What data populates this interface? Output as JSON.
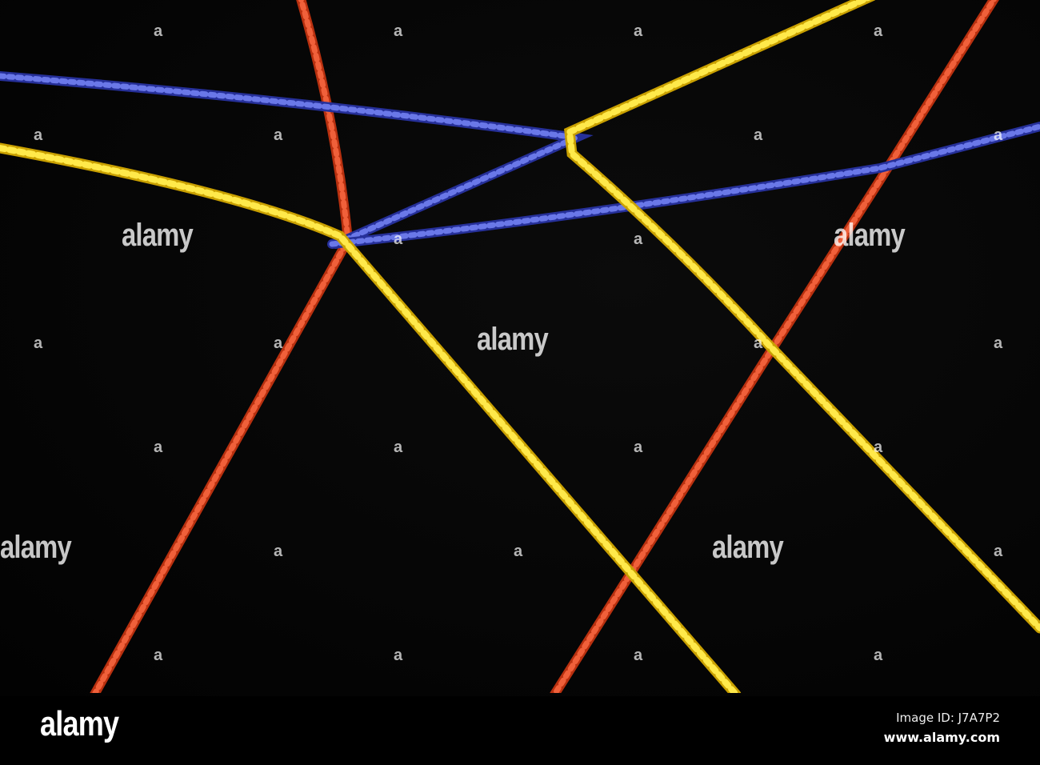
{
  "image": {
    "description_colors": {
      "background": "#000000",
      "red_rope": "#e0401c",
      "yellow_rope": "#f3d21a",
      "blue_rope": "#3a48c4"
    }
  },
  "watermark": {
    "text": "alamy",
    "mark": "a"
  },
  "footer": {
    "logo": "alamy",
    "image_id": "Image ID: J7A7P2",
    "site": "www.alamy.com"
  }
}
